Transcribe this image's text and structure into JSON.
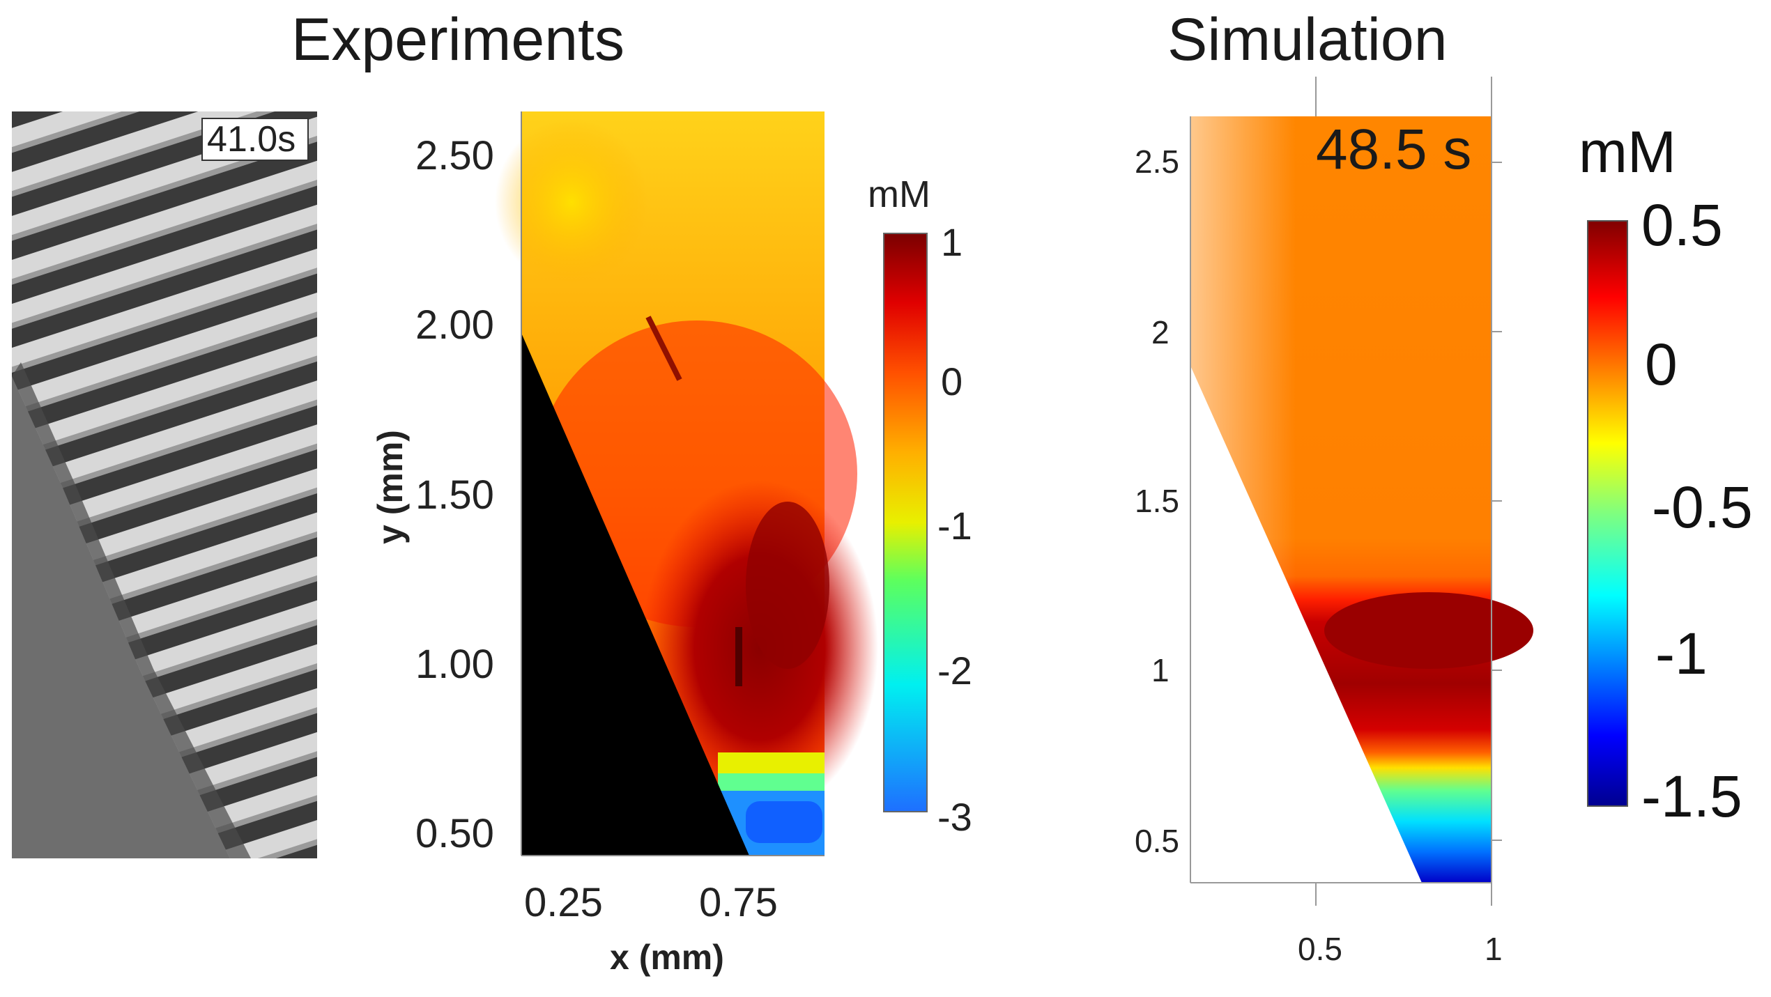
{
  "titles": {
    "experiments": "Experiments",
    "simulation": "Simulation"
  },
  "photo": {
    "timestamp": "41.0s"
  },
  "chart_data": [
    {
      "type": "heatmap",
      "panel": "experiments",
      "xlabel": "x (mm)",
      "ylabel": "y (mm)",
      "xlim": [
        0.15,
        1.0
      ],
      "ylim": [
        0.42,
        2.63
      ],
      "x_ticks": [
        0.25,
        0.75
      ],
      "x_tick_labels": [
        "0.25",
        "0.75"
      ],
      "y_ticks": [
        2.5,
        2.0,
        1.5,
        1.0,
        0.5
      ],
      "y_tick_labels": [
        "2.50",
        "2.00",
        "1.50",
        "1.00",
        "0.50"
      ],
      "masked_region": "black triangle lower-left",
      "colorbar": {
        "label": "mM",
        "range": [
          -3,
          1
        ],
        "ticks": [
          1,
          0,
          -1,
          -2,
          -3
        ],
        "tick_labels": [
          "1",
          "0",
          "-1",
          "-2",
          "-3"
        ]
      }
    },
    {
      "type": "heatmap",
      "panel": "simulation",
      "annotation": "48.5 s",
      "xlim": [
        0.15,
        1.0
      ],
      "ylim": [
        0.38,
        2.63
      ],
      "x_ticks": [
        0.5,
        1.0
      ],
      "x_tick_labels": [
        "0.5",
        "1"
      ],
      "y_ticks": [
        2.5,
        2.0,
        1.5,
        1.0,
        0.5
      ],
      "y_tick_labels": [
        "2.5",
        "2",
        "1.5",
        "1",
        "0.5"
      ],
      "masked_region": "white triangle lower-left",
      "colorbar": {
        "label": "mM",
        "range": [
          -1.5,
          0.5
        ],
        "ticks": [
          0.5,
          0,
          -0.5,
          -1,
          -1.5
        ],
        "tick_labels": [
          "0.5",
          "0",
          "-0.5",
          "-1",
          "-1.5"
        ]
      }
    }
  ]
}
